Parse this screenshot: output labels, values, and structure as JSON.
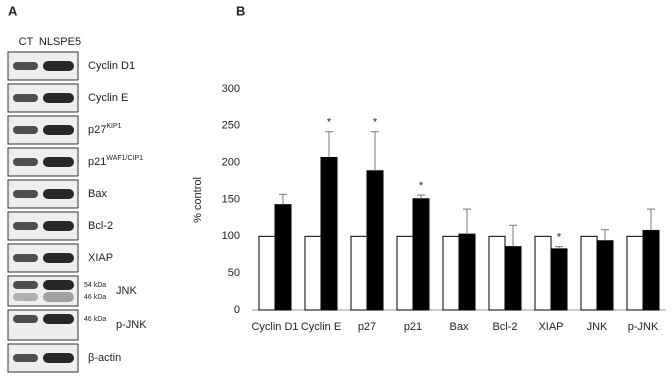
{
  "blot": {
    "panel_label": "A",
    "rows": [
      {
        "label": "Cyclin D1"
      },
      {
        "label": "Cyclin E"
      },
      {
        "label": "p27",
        "superscript": "KIP1"
      },
      {
        "label": "p21",
        "superscript": "WAF1/CIP1"
      },
      {
        "label": "Bax"
      },
      {
        "label": "Bcl-2"
      },
      {
        "label": "XIAP"
      },
      {
        "label": "JNK",
        "markers": [
          "54 kDa",
          "46 kDa"
        ]
      },
      {
        "label": "p-JNK",
        "markers": [
          "46 kDa"
        ]
      },
      {
        "label": "β-actin"
      }
    ]
  },
  "chart_data": {
    "type": "bar",
    "panel_label": "B",
    "y_label": "% control",
    "categories": [
      "Cyclin D1",
      "Cyclin E",
      "p27",
      "p21",
      "Bax",
      "Bcl-2",
      "XIAP",
      "JNK",
      "p-JNK"
    ],
    "series": [
      {
        "name": "CT",
        "color": "#ffffff",
        "values": [
          100,
          100,
          100,
          100,
          100,
          100,
          100,
          100,
          100
        ]
      },
      {
        "name": "NLSPE5",
        "color": "#000000",
        "values": [
          143,
          207,
          189,
          151,
          103,
          86,
          83,
          94,
          108
        ],
        "errors": [
          14,
          35,
          53,
          5,
          34,
          29,
          3,
          15,
          29
        ]
      }
    ],
    "significance": [
      null,
      "*",
      "*",
      "*",
      null,
      null,
      "*",
      null,
      null
    ],
    "ylim": [
      0,
      300
    ],
    "yticks": [
      0,
      50,
      100,
      150,
      200,
      250,
      300
    ],
    "grid": false
  }
}
